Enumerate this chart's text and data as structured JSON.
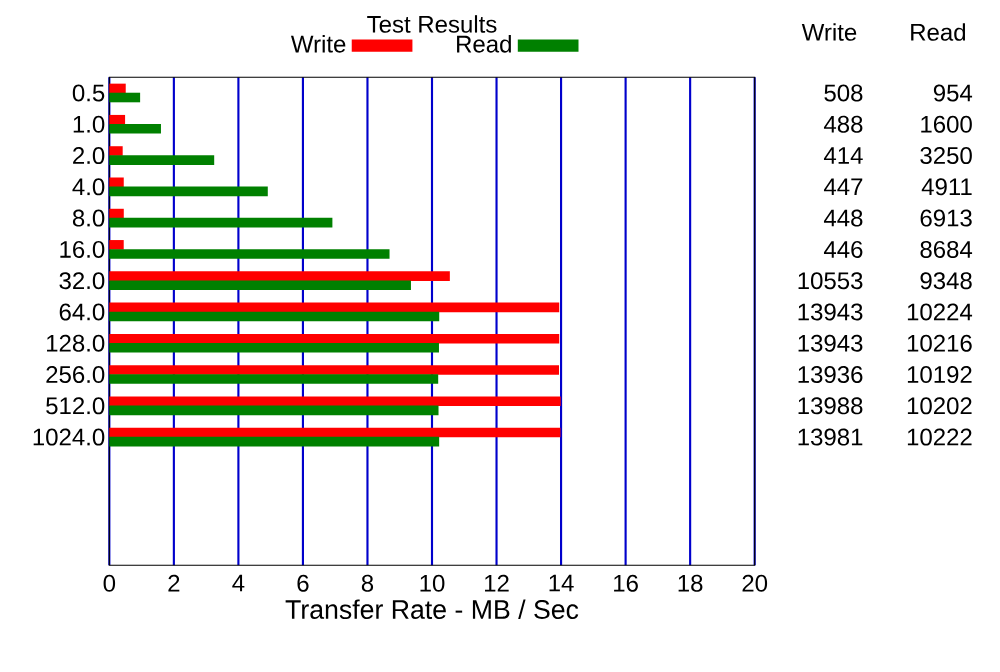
{
  "chart_data": {
    "type": "bar",
    "orientation": "horizontal",
    "title": "Test Results",
    "xlabel": "Transfer Rate - MB / Sec",
    "categories": [
      "0.5",
      "1.0",
      "2.0",
      "4.0",
      "8.0",
      "16.0",
      "32.0",
      "64.0",
      "128.0",
      "256.0",
      "512.0",
      "1024.0"
    ],
    "series": [
      {
        "name": "Write",
        "color": "#ff0000",
        "values": [
          0.508,
          0.488,
          0.414,
          0.447,
          0.448,
          0.446,
          10.553,
          13.943,
          13.943,
          13.936,
          13.988,
          13.981
        ]
      },
      {
        "name": "Read",
        "color": "#008000",
        "values": [
          0.954,
          1.6,
          3.25,
          4.911,
          6.913,
          8.684,
          9.348,
          10.224,
          10.216,
          10.192,
          10.202,
          10.222
        ]
      }
    ],
    "annotations": [
      "508",
      "954",
      "488",
      "1600",
      "414",
      "3250",
      "447",
      "4911",
      "448",
      "6913",
      "446",
      "8684",
      "10553",
      "9348",
      "13943",
      "10224",
      "13943",
      "10216",
      "13936",
      "10192",
      "13988",
      "10202",
      "13981",
      "10222"
    ],
    "xlim": [
      0,
      20
    ],
    "xticks": [
      0,
      2,
      4,
      6,
      8,
      10,
      12,
      14,
      16,
      18,
      20
    ],
    "grid": "x",
    "legend": "top"
  }
}
